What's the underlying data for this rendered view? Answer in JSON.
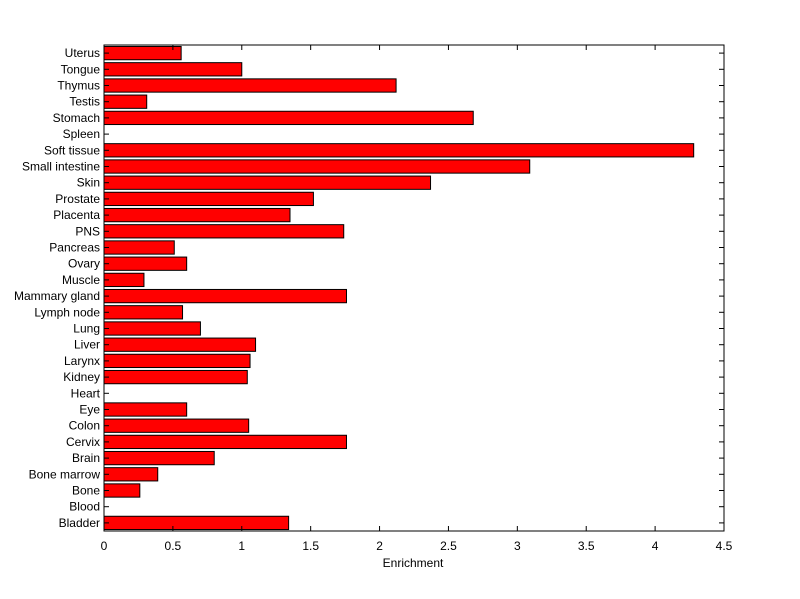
{
  "chart_data": {
    "type": "bar",
    "orientation": "horizontal",
    "xlabel": "Enrichment",
    "ylabel": "",
    "title": "",
    "xlim": [
      0,
      4.5
    ],
    "xticks": [
      "0",
      "0.5",
      "1",
      "1.5",
      "2",
      "2.5",
      "3",
      "3.5",
      "4",
      "4.5"
    ],
    "grid": false,
    "legend": "none",
    "bar_color": "#ff0000",
    "categories": [
      "Bladder",
      "Blood",
      "Bone",
      "Bone marrow",
      "Brain",
      "Cervix",
      "Colon",
      "Eye",
      "Heart",
      "Kidney",
      "Larynx",
      "Liver",
      "Lung",
      "Lymph node",
      "Mammary gland",
      "Muscle",
      "Ovary",
      "Pancreas",
      "PNS",
      "Placenta",
      "Prostate",
      "Skin",
      "Small intestine",
      "Soft tissue",
      "Spleen",
      "Stomach",
      "Testis",
      "Thymus",
      "Tongue",
      "Uterus"
    ],
    "values": [
      1.34,
      0,
      0.26,
      0.39,
      0.8,
      1.76,
      1.05,
      0.6,
      0,
      1.04,
      1.06,
      1.1,
      0.7,
      0.57,
      1.76,
      0.29,
      0.6,
      0.51,
      1.74,
      1.35,
      1.52,
      2.37,
      3.09,
      4.28,
      0,
      2.68,
      0.31,
      2.12,
      1.0,
      0.56
    ]
  }
}
